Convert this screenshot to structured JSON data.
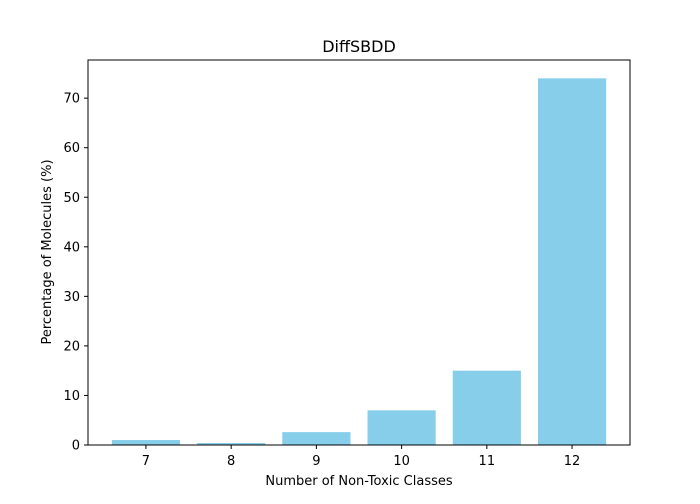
{
  "chart_data": {
    "type": "bar",
    "title": "DiffSBDD",
    "xlabel": "Number of Non-Toxic Classes",
    "ylabel": "Percentage of Molecules (%)",
    "categories": [
      "7",
      "8",
      "9",
      "10",
      "11",
      "12"
    ],
    "values": [
      1.0,
      0.4,
      2.6,
      7.0,
      15.0,
      74.0
    ],
    "ylim": [
      0,
      77.7
    ],
    "yticks": [
      0,
      10,
      20,
      30,
      40,
      50,
      60,
      70
    ],
    "grid": false,
    "legend": "none",
    "bar_color": "#87CEEB"
  }
}
